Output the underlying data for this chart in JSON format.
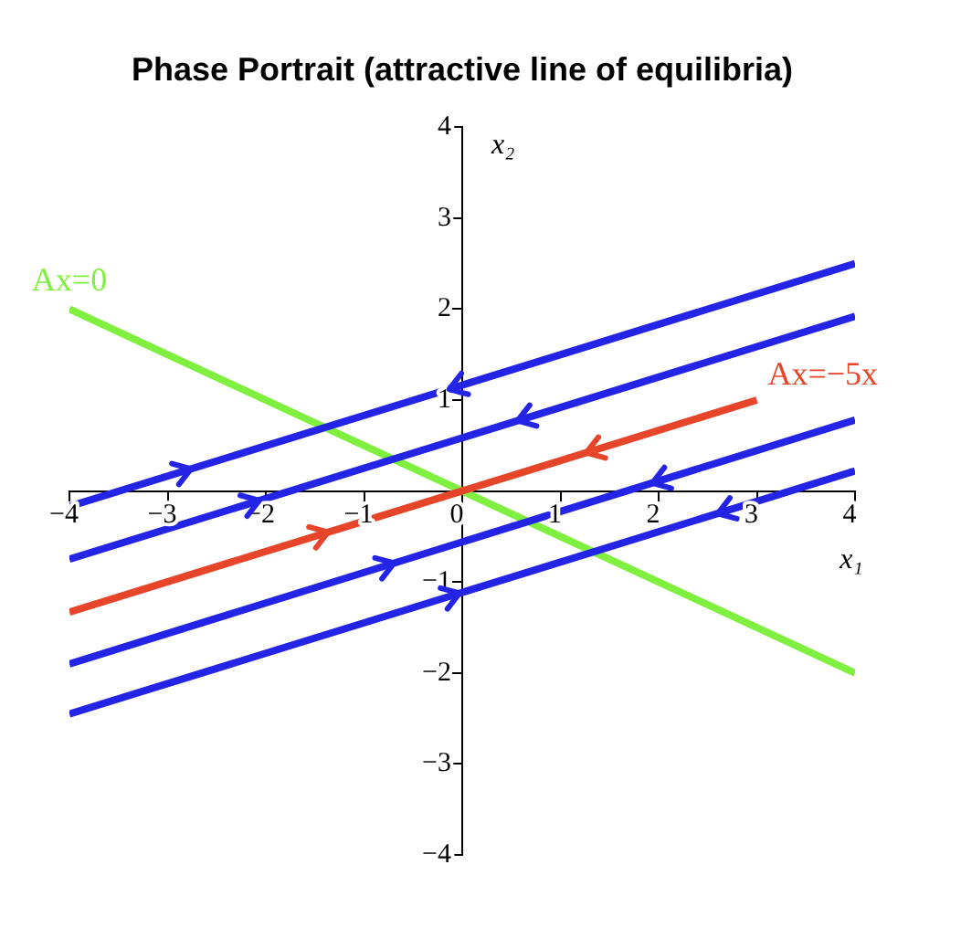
{
  "chart_data": {
    "type": "line",
    "title": "Phase Portrait (attractive line of equilibria)",
    "xlabel": "x₁",
    "ylabel": "x₂",
    "xlim": [
      -4,
      4
    ],
    "ylim": [
      -4,
      4
    ],
    "xticks": [
      {
        "value": -4,
        "label": "−4"
      },
      {
        "value": -3,
        "label": "−3"
      },
      {
        "value": -2,
        "label": "−2"
      },
      {
        "value": -1,
        "label": "−1"
      },
      0,
      1,
      2,
      3,
      4
    ],
    "yticks": [
      {
        "value": -4,
        "label": "−4"
      },
      {
        "value": -3,
        "label": "−3"
      },
      {
        "value": -2,
        "label": "−2"
      },
      {
        "value": -1,
        "label": "−1"
      },
      {
        "value": 0,
        "label": null
      },
      1,
      2,
      3,
      4
    ],
    "series": [
      {
        "color": "#2424e6",
        "x": [
          -4,
          4
        ],
        "values": [
          -0.17,
          2.5
        ]
      },
      {
        "color": "#2424e6",
        "x": [
          -4,
          4
        ],
        "values": [
          -0.75,
          1.92
        ]
      },
      {
        "name": "Ax=−5x",
        "color": "#e6452a",
        "x": [
          -4,
          3
        ],
        "values": [
          -1.33,
          1.0
        ]
      },
      {
        "color": "#2424e6",
        "x": [
          -4,
          4
        ],
        "values": [
          -1.9,
          0.78
        ]
      },
      {
        "color": "#2424e6",
        "x": [
          -4,
          4
        ],
        "values": [
          -2.45,
          0.22
        ]
      },
      {
        "name": "Ax=0",
        "color": "#80f040",
        "x": [
          -4,
          4
        ],
        "values": [
          2,
          -2
        ]
      }
    ]
  }
}
